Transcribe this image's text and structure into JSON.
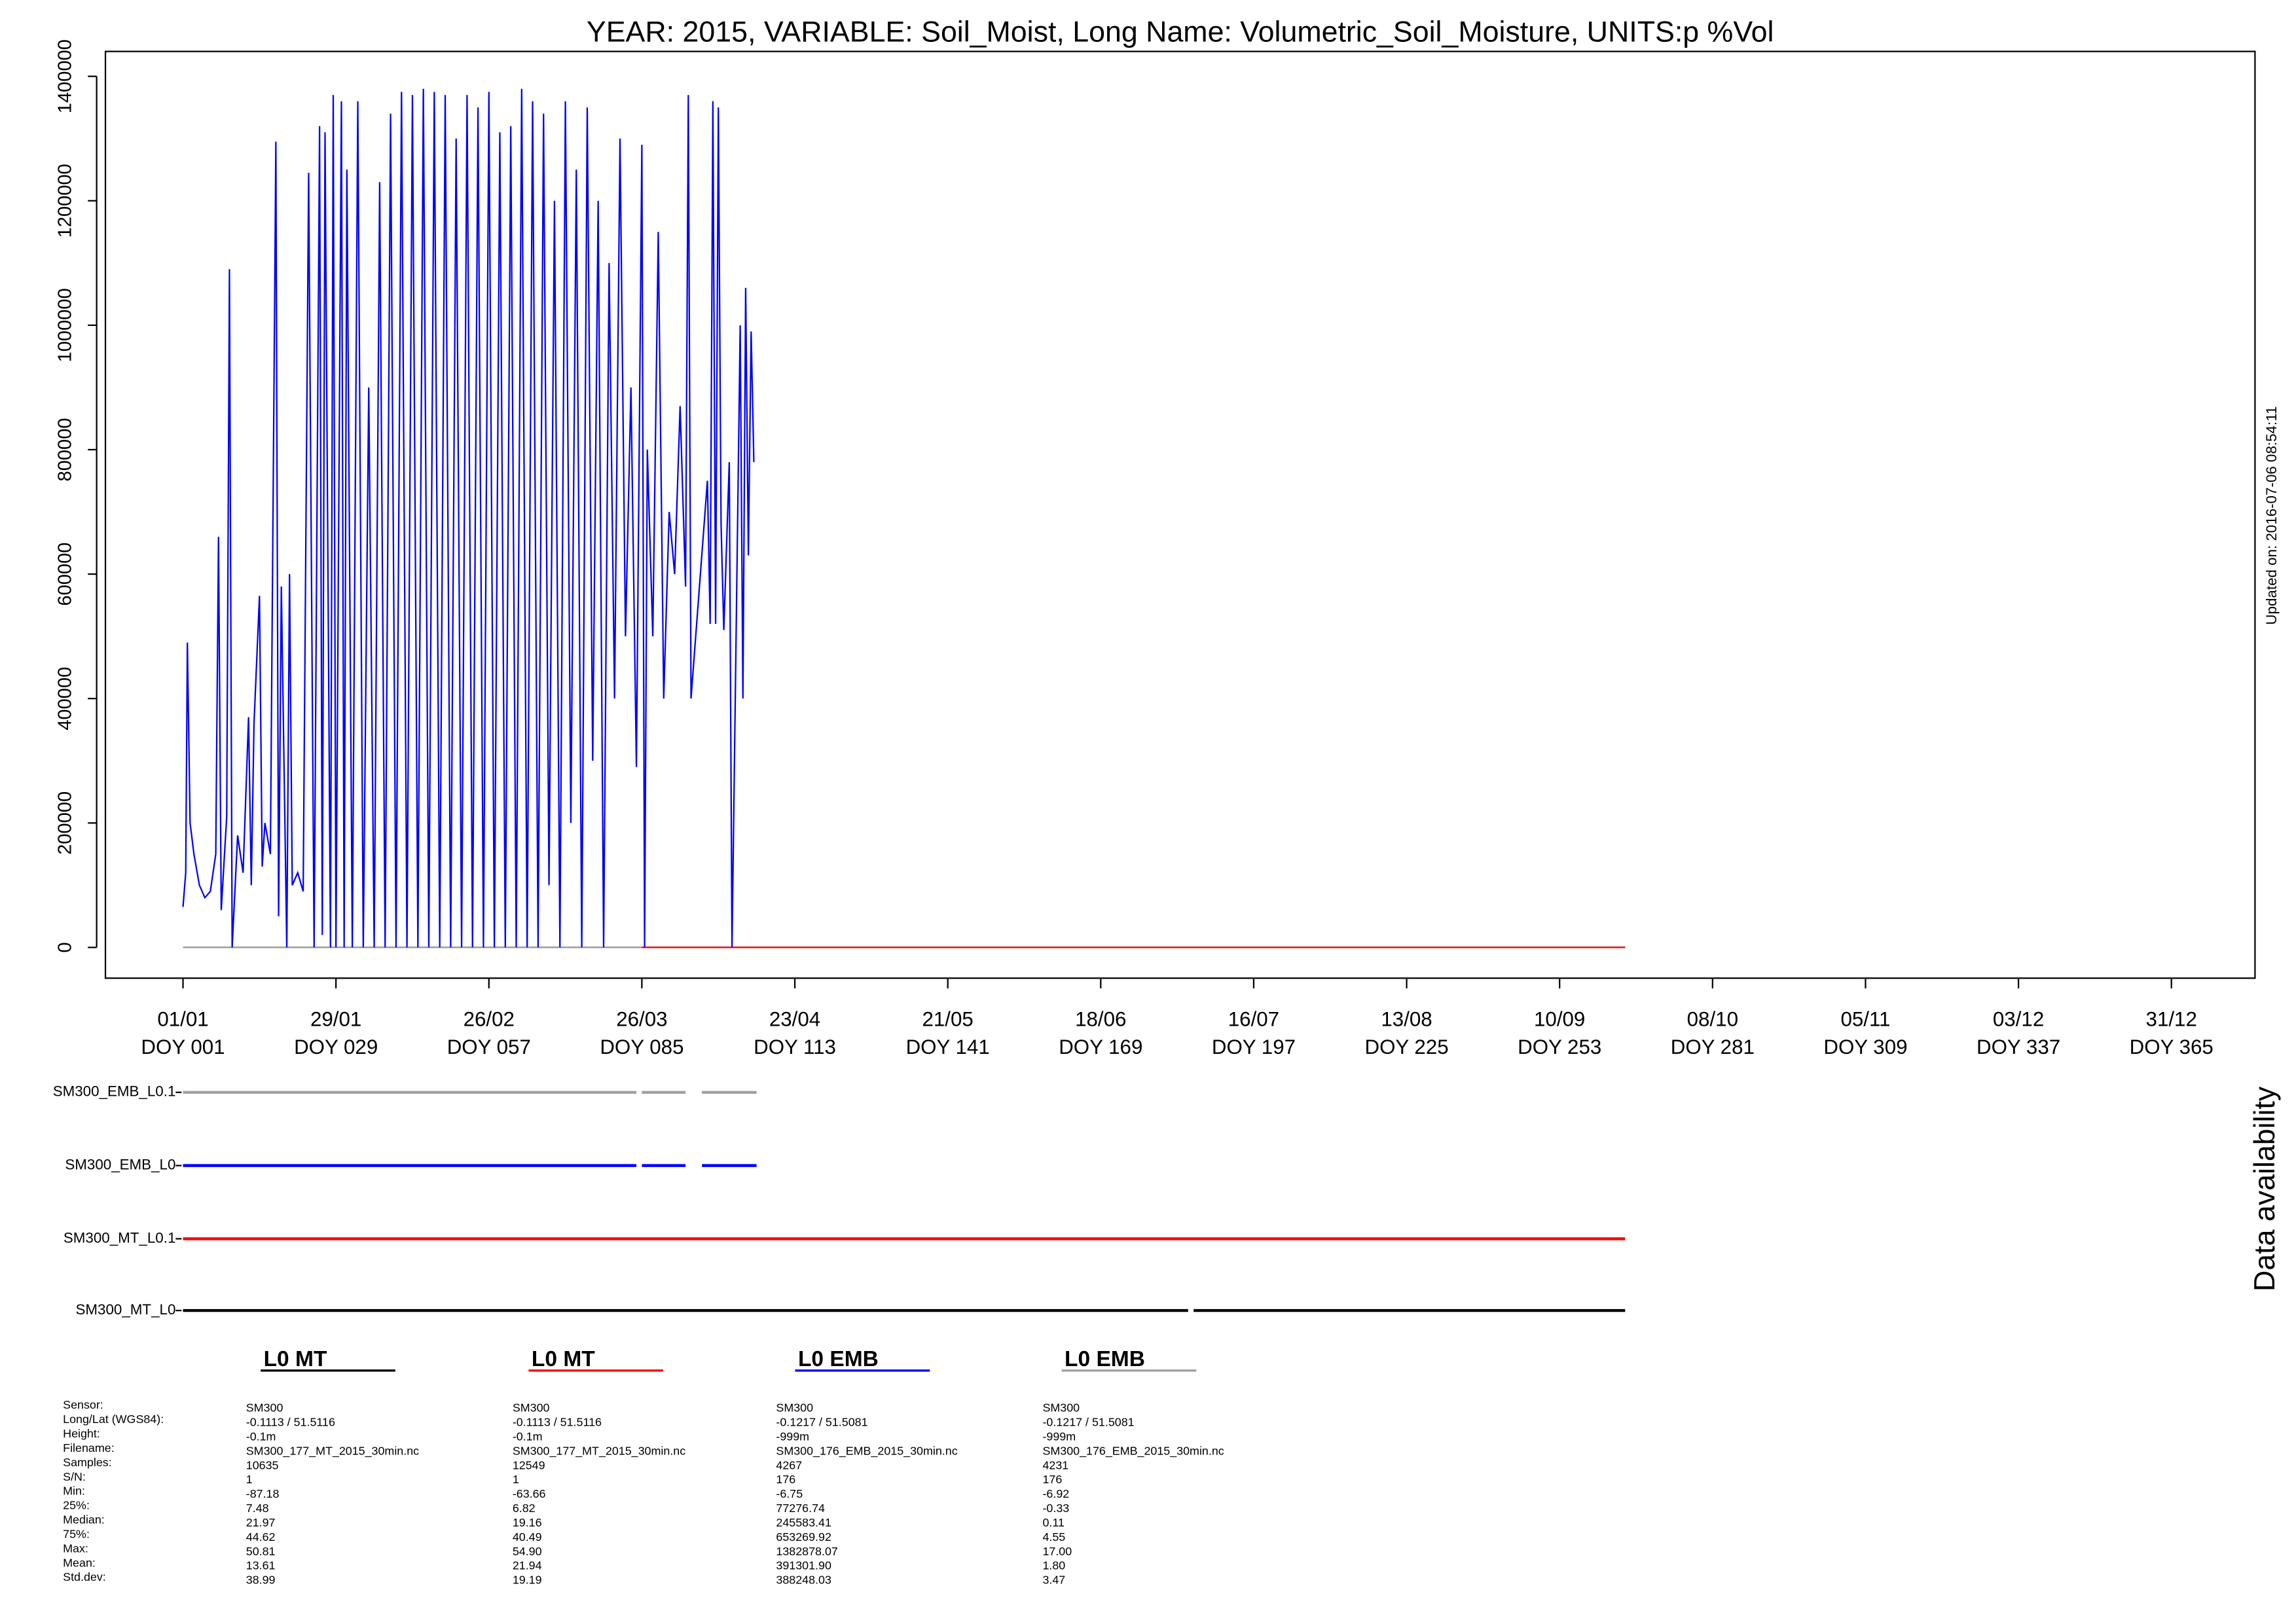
{
  "chart_data": {
    "type": "line",
    "title": "YEAR: 2015, VARIABLE: Soil_Moist, Long Name: Volumetric_Soil_Moisture, UNITS:p %Vol",
    "xlim": [
      -13.2,
      380.3
    ],
    "ylim": [
      -49400,
      1440000
    ],
    "xticks": [
      {
        "value": 1,
        "label": "01/01"
      },
      {
        "value": 29,
        "label": "29/01"
      },
      {
        "value": 57,
        "label": "26/02"
      },
      {
        "value": 85,
        "label": "26/03"
      },
      {
        "value": 113,
        "label": "23/04"
      },
      {
        "value": 141,
        "label": "21/05"
      },
      {
        "value": 169,
        "label": "18/06"
      },
      {
        "value": 197,
        "label": "16/07"
      },
      {
        "value": 225,
        "label": "13/08"
      },
      {
        "value": 253,
        "label": "10/09"
      },
      {
        "value": 281,
        "label": "08/10"
      },
      {
        "value": 309,
        "label": "05/11"
      },
      {
        "value": 337,
        "label": "03/12"
      },
      {
        "value": 365,
        "label": "31/12"
      }
    ],
    "xtick_sublabels": [
      "DOY 001",
      "DOY 029",
      "DOY 057",
      "DOY 085",
      "DOY 113",
      "DOY 141",
      "DOY 169",
      "DOY 197",
      "DOY 225",
      "DOY 253",
      "DOY 281",
      "DOY 309",
      "DOY 337",
      "DOY 365"
    ],
    "yticks": [
      0,
      200000,
      400000,
      600000,
      800000,
      1000000,
      1200000,
      1400000
    ],
    "series": [
      {
        "name": "L0 MT",
        "color": "#000000",
        "x": [
          1,
          265
        ],
        "values": [
          13.61,
          13.61
        ]
      },
      {
        "name": "L0 MT",
        "color": "#ff0000",
        "x": [
          85,
          265
        ],
        "values": [
          21.94,
          21.94
        ]
      },
      {
        "name": "L0 EMB",
        "color": "#0000ff",
        "x": [
          1,
          1.5,
          1.8,
          2.3,
          3,
          4,
          5,
          6,
          7,
          7.5,
          8,
          9,
          9.5,
          10,
          11,
          12,
          13,
          13.5,
          14,
          15,
          15.5,
          16,
          17,
          18,
          18.5,
          19,
          20,
          20.5,
          21,
          22,
          23,
          24,
          25,
          26,
          26.5,
          27,
          28,
          28.5,
          29,
          30,
          30.5,
          31,
          32,
          33,
          34,
          35,
          36,
          37,
          38,
          39,
          40,
          41,
          42,
          43,
          44,
          45,
          46,
          47,
          48,
          49,
          50,
          51,
          52,
          53,
          54,
          55,
          56,
          57,
          58,
          59,
          60,
          61,
          62,
          63,
          64,
          65,
          66,
          67,
          68,
          69,
          70,
          71,
          72,
          73,
          74,
          75,
          76,
          77,
          78,
          79,
          80,
          81,
          82,
          83,
          84,
          85,
          85.5,
          86,
          87,
          88,
          89,
          90,
          91,
          92,
          93,
          93.5,
          94,
          97,
          97.5,
          98,
          98.5,
          99,
          99.5,
          100,
          101,
          101.5,
          103,
          103.5,
          104,
          104.5,
          105,
          105.5
        ],
        "values": [
          65000,
          120000,
          490000,
          200000,
          150000,
          100000,
          80000,
          90000,
          150000,
          660000,
          60000,
          210000,
          1090000,
          0,
          180000,
          120000,
          370000,
          100000,
          360000,
          565000,
          130000,
          200000,
          150000,
          1295000,
          50000,
          580000,
          0,
          600000,
          100000,
          120000,
          90000,
          1245000,
          0,
          1320000,
          20000,
          1310000,
          0,
          1370000,
          0,
          1360000,
          0,
          1250000,
          0,
          1360000,
          0,
          900000,
          0,
          1230000,
          0,
          1340000,
          0,
          1375000,
          0,
          1370000,
          0,
          1380000,
          0,
          1375000,
          0,
          1370000,
          0,
          1300000,
          0,
          1370000,
          0,
          1350000,
          0,
          1375000,
          0,
          1310000,
          0,
          1320000,
          0,
          1380000,
          0,
          1360000,
          0,
          1340000,
          100000,
          1200000,
          0,
          1360000,
          200000,
          1250000,
          0,
          1350000,
          300000,
          1200000,
          0,
          1100000,
          400000,
          1300000,
          500000,
          900000,
          290000,
          1290000,
          0,
          800000,
          500000,
          1150000,
          400000,
          700000,
          600000,
          870000,
          580000,
          1370000,
          400000,
          750000,
          520000,
          1360000,
          520000,
          1350000,
          680000,
          510000,
          780000,
          0,
          1000000,
          400000,
          1060000,
          630000,
          990000,
          780000
        ]
      },
      {
        "name": "L0 EMB",
        "color": "#a0a0a0",
        "x": [
          1,
          113
        ],
        "values": [
          1.8,
          1.8
        ]
      }
    ]
  },
  "availability": {
    "title": "Data availability",
    "rows": [
      {
        "label": "SM300_EMB_L0.1",
        "color": "#a0a0a0",
        "segments": [
          [
            1,
            84
          ],
          [
            85,
            93
          ],
          [
            96,
            106
          ]
        ]
      },
      {
        "label": "SM300_EMB_L0",
        "color": "#0000ff",
        "segments": [
          [
            1,
            84
          ],
          [
            85,
            93
          ],
          [
            96,
            106
          ]
        ]
      },
      {
        "label": "SM300_MT_L0.1",
        "color": "#ff0000",
        "segments": [
          [
            1,
            265
          ]
        ]
      },
      {
        "label": "SM300_MT_L0",
        "color": "#000000",
        "segments": [
          [
            1,
            185
          ],
          [
            186,
            265
          ]
        ]
      }
    ]
  },
  "updated_note": "Updated on: 2016-07-06 08:54:11",
  "stats_table": {
    "labels": [
      "Sensor:",
      "Long/Lat (WGS84):",
      "Height:",
      "Filename:",
      "Samples:",
      "S/N:",
      "Min:",
      "25%:",
      "Median:",
      "75%:",
      "Max:",
      "Mean:",
      "Std.dev:"
    ],
    "columns": [
      [
        "SM300",
        "-0.1113 / 51.5116",
        "-0.1m",
        "SM300_177_MT_2015_30min.nc",
        "10635",
        "1",
        "-87.18",
        "7.48",
        "21.97",
        "44.62",
        "50.81",
        "13.61",
        "38.99"
      ],
      [
        "SM300",
        "-0.1113 / 51.5116",
        "-0.1m",
        "SM300_177_MT_2015_30min.nc",
        "12549",
        "1",
        "-63.66",
        "6.82",
        "19.16",
        "40.49",
        "54.90",
        "21.94",
        "19.19"
      ],
      [
        "SM300",
        "-0.1217 / 51.5081",
        "-999m",
        "SM300_176_EMB_2015_30min.nc",
        "4267",
        "176",
        "-6.75",
        "77276.74",
        "245583.41",
        "653269.92",
        "1382878.07",
        "391301.90",
        "388248.03"
      ],
      [
        "SM300",
        "-0.1217 / 51.5081",
        "-999m",
        "SM300_176_EMB_2015_30min.nc",
        "4231",
        "176",
        "-6.92",
        "-0.33",
        "0.11",
        "4.55",
        "17.00",
        "1.80",
        "3.47"
      ]
    ]
  }
}
